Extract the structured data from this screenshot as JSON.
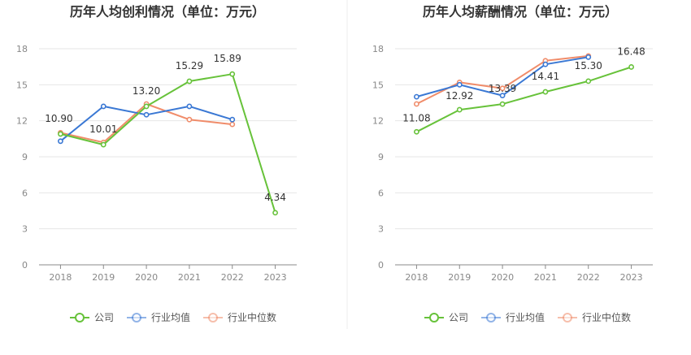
{
  "chart_data": [
    {
      "type": "line",
      "title": "历年人均创利情况（单位：万元）",
      "categories": [
        "2018",
        "2019",
        "2020",
        "2021",
        "2022",
        "2023"
      ],
      "ylim": [
        0,
        18
      ],
      "yticks": [
        "0",
        "3",
        "6",
        "9",
        "12",
        "15",
        "18"
      ],
      "grid": true,
      "legend_position": "bottom",
      "series": [
        {
          "name": "公司",
          "color": "#67c23a",
          "values": [
            10.9,
            10.01,
            13.2,
            15.29,
            15.89,
            4.34
          ],
          "labels": [
            "10.90",
            "10.01",
            "13.20",
            "15.29",
            "15.89",
            "4.34"
          ]
        },
        {
          "name": "行业均值",
          "color": "#3a78d4",
          "values": [
            10.3,
            13.2,
            12.5,
            13.2,
            12.1,
            null
          ],
          "labels": []
        },
        {
          "name": "行业中位数",
          "color": "#f08c6a",
          "values": [
            11.0,
            10.2,
            13.4,
            12.1,
            11.7,
            null
          ],
          "labels": []
        }
      ]
    },
    {
      "type": "line",
      "title": "历年人均薪酬情况（单位：万元）",
      "categories": [
        "2018",
        "2019",
        "2020",
        "2021",
        "2022",
        "2023"
      ],
      "ylim": [
        0,
        18
      ],
      "yticks": [
        "0",
        "3",
        "6",
        "9",
        "12",
        "15",
        "18"
      ],
      "grid": true,
      "legend_position": "bottom",
      "series": [
        {
          "name": "公司",
          "color": "#67c23a",
          "values": [
            11.08,
            12.92,
            13.39,
            14.41,
            15.3,
            16.48
          ],
          "labels": [
            "11.08",
            "12.92",
            "13.39",
            "14.41",
            "15.30",
            "16.48"
          ]
        },
        {
          "name": "行业均值",
          "color": "#3a78d4",
          "values": [
            14.0,
            15.0,
            14.1,
            16.7,
            17.3,
            null
          ],
          "labels": []
        },
        {
          "name": "行业中位数",
          "color": "#f08c6a",
          "values": [
            13.4,
            15.2,
            14.7,
            17.0,
            17.4,
            null
          ],
          "labels": []
        }
      ]
    }
  ]
}
